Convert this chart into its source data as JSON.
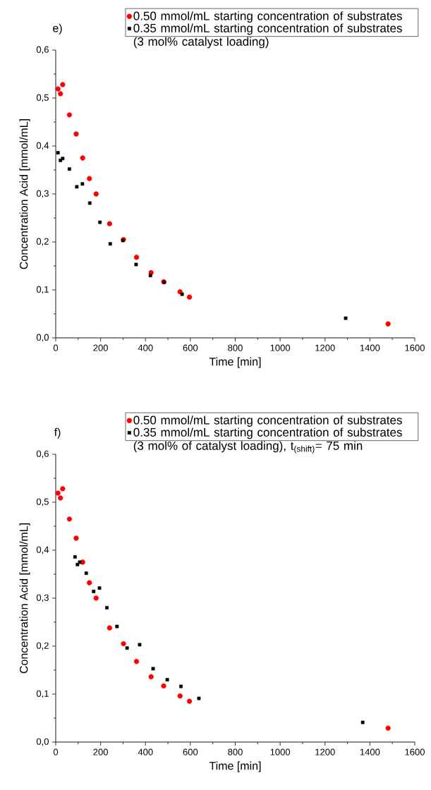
{
  "chart_data": [
    {
      "type": "scatter",
      "title": "e)",
      "xlabel": "Time [min]",
      "ylabel": "Concentration Acid  [mmol/mL]",
      "xlim": [
        0,
        1600
      ],
      "ylim": [
        0,
        0.6
      ],
      "xticks": [
        0,
        200,
        400,
        600,
        800,
        1000,
        1200,
        1400,
        1600
      ],
      "yticks": [
        {
          "value": 0,
          "label": "0,0"
        },
        {
          "value": 0.1,
          "label": "0,1"
        },
        {
          "value": 0.2,
          "label": "0,2"
        },
        {
          "value": 0.3,
          "label": "0,3"
        },
        {
          "value": 0.4,
          "label": "0,4"
        },
        {
          "value": 0.5,
          "label": "0,5"
        },
        {
          "value": 0.6,
          "label": "0,6"
        }
      ],
      "legend": "top right",
      "grid": false,
      "series": [
        {
          "name": "0.50 mmol/mL starting concentration of substrates",
          "color": "#ff0000",
          "marker": "circle",
          "x": [
            10,
            21,
            31,
            61,
            91,
            120,
            150,
            180,
            240,
            302,
            360,
            425,
            481,
            554,
            596,
            1481
          ],
          "values": [
            0.519,
            0.509,
            0.528,
            0.465,
            0.425,
            0.375,
            0.332,
            0.3,
            0.238,
            0.205,
            0.168,
            0.136,
            0.117,
            0.096,
            0.085,
            0.029
          ]
        },
        {
          "name": "0.35 mmol/mL starting concentration of substrates (3 mol% catalyst loading)",
          "color": "#000000",
          "marker": "square",
          "x": [
            10,
            21,
            31,
            61,
            94,
            119,
            152,
            197,
            243,
            299,
            358,
            422,
            484,
            563,
            1292
          ],
          "values": [
            0.386,
            0.37,
            0.374,
            0.352,
            0.315,
            0.321,
            0.281,
            0.241,
            0.196,
            0.203,
            0.153,
            0.13,
            0.116,
            0.091,
            0.041
          ]
        }
      ]
    },
    {
      "type": "scatter",
      "title": "f)",
      "xlabel": "Time [min]",
      "ylabel": "Concentration Acid  [mmol/mL]",
      "xlim": [
        0,
        1600
      ],
      "ylim": [
        0,
        0.6
      ],
      "xticks": [
        0,
        200,
        400,
        600,
        800,
        1000,
        1200,
        1400,
        1600
      ],
      "yticks": [
        {
          "value": 0,
          "label": "0,0"
        },
        {
          "value": 0.1,
          "label": "0,1"
        },
        {
          "value": 0.2,
          "label": "0,2"
        },
        {
          "value": 0.3,
          "label": "0,3"
        },
        {
          "value": 0.4,
          "label": "0,4"
        },
        {
          "value": 0.5,
          "label": "0,5"
        },
        {
          "value": 0.6,
          "label": "0,6"
        }
      ],
      "legend": "top right",
      "grid": false,
      "series": [
        {
          "name": "0.50 mmol/mL starting concentration of substrates",
          "color": "#ff0000",
          "marker": "circle",
          "x": [
            10,
            21,
            31,
            61,
            91,
            120,
            150,
            180,
            240,
            302,
            360,
            425,
            481,
            554,
            596,
            1481
          ],
          "values": [
            0.519,
            0.509,
            0.528,
            0.465,
            0.425,
            0.375,
            0.332,
            0.3,
            0.238,
            0.205,
            0.168,
            0.136,
            0.117,
            0.096,
            0.085,
            0.029
          ]
        },
        {
          "name": "0.35 mmol/mL starting concentration of substrates (3 mol% of catalyst loading), t$_{(shift)}$= 75 min",
          "color": "#000000",
          "marker": "square",
          "x": [
            86,
            97,
            107,
            136,
            169,
            195,
            228,
            273,
            318,
            374,
            434,
            497,
            558,
            638,
            1368
          ],
          "values": [
            0.386,
            0.37,
            0.375,
            0.352,
            0.314,
            0.321,
            0.28,
            0.241,
            0.196,
            0.203,
            0.153,
            0.13,
            0.116,
            0.091,
            0.041
          ]
        }
      ]
    }
  ]
}
